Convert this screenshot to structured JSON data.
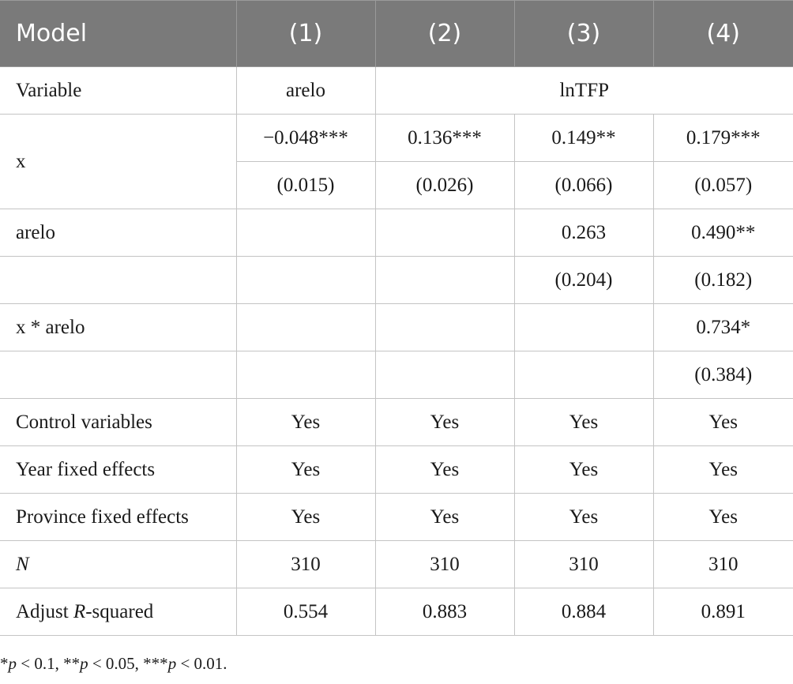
{
  "header": {
    "model": "Model",
    "cols": [
      "(1)",
      "(2)",
      "(3)",
      "(4)"
    ]
  },
  "variable_row": {
    "label": "Variable",
    "col1": "arelo",
    "col2_4": "lnTFP"
  },
  "rows": {
    "x": {
      "label": "x",
      "coef": [
        "−0.048***",
        "0.136***",
        "0.149**",
        "0.179***"
      ],
      "se": [
        "(0.015)",
        "(0.026)",
        "(0.066)",
        "(0.057)"
      ]
    },
    "arelo": {
      "label": "arelo",
      "coef": [
        "",
        "",
        "0.263",
        "0.490**"
      ],
      "se": [
        "",
        "",
        "(0.204)",
        "(0.182)"
      ]
    },
    "interaction": {
      "label": "x * arelo",
      "coef": [
        "",
        "",
        "",
        "0.734*"
      ],
      "se": [
        "",
        "",
        "",
        "(0.384)"
      ]
    },
    "control": {
      "label": "Control variables",
      "vals": [
        "Yes",
        "Yes",
        "Yes",
        "Yes"
      ]
    },
    "year_fe": {
      "label": "Year fixed effects",
      "vals": [
        "Yes",
        "Yes",
        "Yes",
        "Yes"
      ]
    },
    "province_fe": {
      "label": "Province fixed effects",
      "vals": [
        "Yes",
        "Yes",
        "Yes",
        "Yes"
      ]
    },
    "n": {
      "label": "N",
      "vals": [
        "310",
        "310",
        "310",
        "310"
      ]
    },
    "r2": {
      "label_prefix": "Adjust ",
      "label_italic": "R",
      "label_suffix": "-squared",
      "vals": [
        "0.554",
        "0.883",
        "0.884",
        "0.891"
      ]
    }
  },
  "footnote": {
    "p1": "p",
    "t1": " < 0.1, **",
    "p2": "p",
    "t2": " < 0.05, ***",
    "p3": "p",
    "t3": " < 0.01.",
    "lead": "*"
  }
}
